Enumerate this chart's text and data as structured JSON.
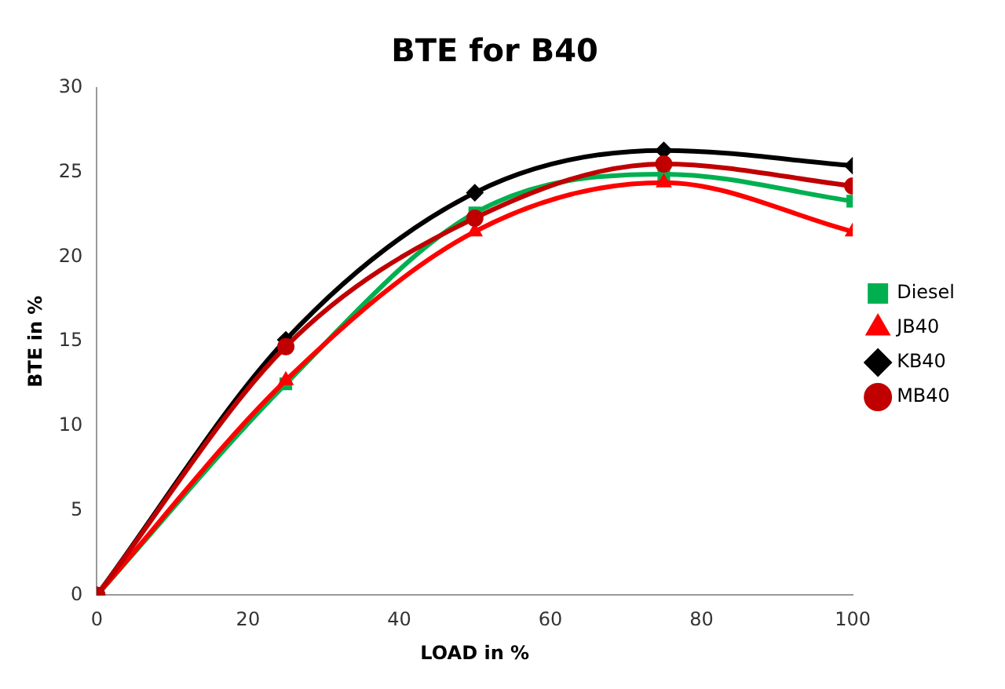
{
  "chart_data": {
    "type": "line",
    "title": "BTE for B40",
    "xlabel": "LOAD in %",
    "ylabel": "BTE in %",
    "x": [
      0,
      25,
      50,
      75,
      100
    ],
    "xlim": [
      0,
      100
    ],
    "xticks": [
      0,
      20,
      40,
      60,
      80,
      100
    ],
    "ylim": [
      0,
      30
    ],
    "yticks": [
      0,
      5,
      10,
      15,
      20,
      25,
      30
    ],
    "grid": false,
    "legend": "right",
    "series": [
      {
        "name": "Diesel",
        "color": "#00b050",
        "marker": "square",
        "values": [
          0,
          12.5,
          22.6,
          24.9,
          23.3
        ]
      },
      {
        "name": "JB40",
        "color": "#ff0000",
        "marker": "triangle",
        "values": [
          0,
          12.7,
          21.5,
          24.4,
          21.5
        ]
      },
      {
        "name": "KB40",
        "color": "#000000",
        "marker": "diamond",
        "values": [
          0,
          15.1,
          23.8,
          26.3,
          25.4
        ]
      },
      {
        "name": "MB40",
        "color": "#c00000",
        "marker": "circle",
        "values": [
          0,
          14.7,
          22.3,
          25.5,
          24.2
        ]
      }
    ]
  }
}
